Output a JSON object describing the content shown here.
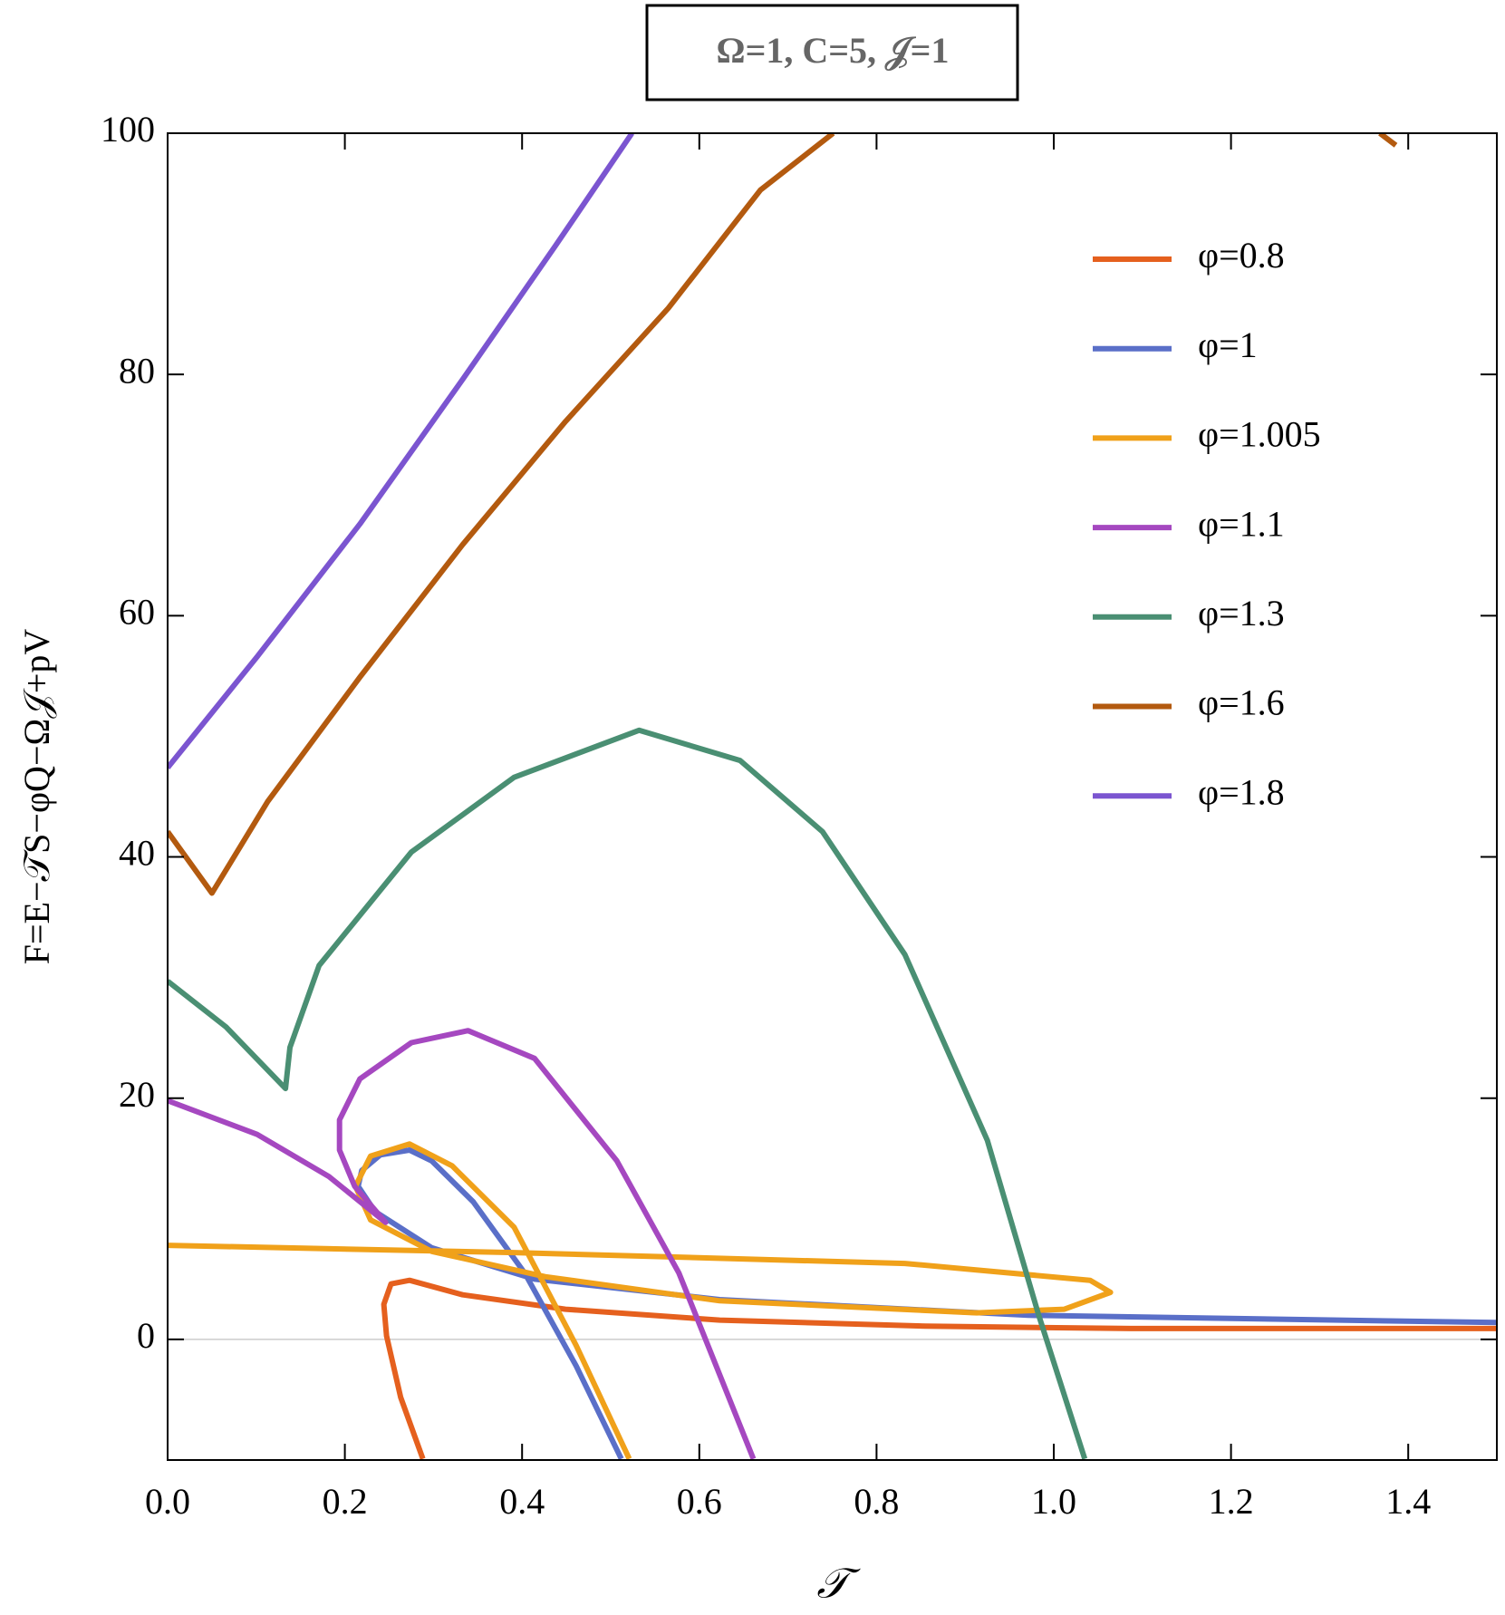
{
  "chart_data": {
    "type": "line",
    "title": "Ω=1, C=5, 𝒥=1",
    "xlabel": "𝒯",
    "ylabel": "F=E−𝒯S−φQ−Ω𝒥+pV",
    "xlim": [
      0,
      1.5
    ],
    "ylim": [
      -10,
      100
    ],
    "xticks": [
      {
        "value": 0,
        "label": "0.0"
      },
      0.2,
      0.4,
      0.6,
      0.8,
      {
        "value": 1,
        "label": "1.0"
      },
      1.2,
      1.4
    ],
    "yticks": [
      0,
      20,
      40,
      60,
      80,
      100
    ],
    "hlines": [
      0
    ],
    "legend_position": "upper right",
    "series": [
      {
        "name": "φ=0.8",
        "color": "#e5601e",
        "x": [
          0.288,
          0.263,
          0.247,
          0.244,
          0.252,
          0.273,
          0.333,
          0.449,
          0.623,
          0.855,
          1.087,
          1.5
        ],
        "values": [
          -9.9,
          -4.8,
          0.3,
          2.9,
          4.6,
          4.9,
          3.7,
          2.5,
          1.6,
          1.1,
          0.9,
          0.9
        ]
      },
      {
        "name": "φ=1",
        "color": "#5a6fc8",
        "x": [
          0.512,
          0.461,
          0.403,
          0.345,
          0.298,
          0.273,
          0.24,
          0.219,
          0.215,
          0.234,
          0.298,
          0.414,
          0.623,
          0.971,
          1.5
        ],
        "values": [
          -9.9,
          -2.2,
          5.5,
          11.4,
          14.8,
          15.7,
          15.3,
          14.0,
          12.7,
          10.6,
          7.6,
          5.0,
          3.3,
          2.0,
          1.4
        ]
      },
      {
        "name": "φ=1.005",
        "color": "#f0a11a",
        "x": [
          0,
          0.391,
          0.832,
          1.041,
          1.064,
          1.012,
          0.913,
          0.623,
          0.426,
          0.298,
          0.229,
          0.212,
          0.229,
          0.273,
          0.321,
          0.391,
          0.461,
          0.521
        ],
        "values": [
          7.8,
          7.2,
          6.3,
          4.9,
          3.9,
          2.5,
          2.2,
          3.2,
          5.2,
          7.3,
          9.9,
          12.7,
          15.2,
          16.2,
          14.4,
          9.3,
          -0.5,
          -9.9
        ]
      },
      {
        "name": "φ=1.1",
        "color": "#a548c0",
        "x": [
          0,
          0.101,
          0.182,
          0.246,
          0.211,
          0.194,
          0.194,
          0.217,
          0.275,
          0.339,
          0.414,
          0.507,
          0.577,
          0.661
        ],
        "values": [
          19.8,
          17.0,
          13.5,
          9.7,
          12.7,
          15.7,
          18.2,
          21.6,
          24.6,
          25.6,
          23.3,
          14.8,
          5.5,
          -9.9
        ]
      },
      {
        "name": "φ=1.3",
        "color": "#4a8f73",
        "x": [
          0,
          0.066,
          0.133,
          0.138,
          0.171,
          0.275,
          0.391,
          0.532,
          0.646,
          0.739,
          0.832,
          0.925,
          0.983,
          1.035
        ],
        "values": [
          29.7,
          25.9,
          20.8,
          24.2,
          31.0,
          40.4,
          46.6,
          50.5,
          48.0,
          42.1,
          31.9,
          16.5,
          2.0,
          -9.9
        ]
      },
      {
        "name": "φ=1.6",
        "color": "#b35a0f",
        "x": [
          0,
          0.05,
          0.113,
          0.217,
          0.333,
          0.449,
          0.565,
          0.669,
          0.751,
          null,
          1.368,
          1.386
        ],
        "values": [
          42.1,
          37.0,
          44.6,
          54.9,
          65.9,
          76.1,
          85.5,
          95.3,
          100,
          null,
          100,
          99.0
        ]
      },
      {
        "name": "φ=1.8",
        "color": "#7b55d0",
        "x": [
          0,
          0.101,
          0.217,
          0.333,
          0.437,
          0.524
        ],
        "values": [
          47.4,
          56.6,
          67.6,
          79.6,
          90.6,
          100
        ]
      }
    ]
  }
}
